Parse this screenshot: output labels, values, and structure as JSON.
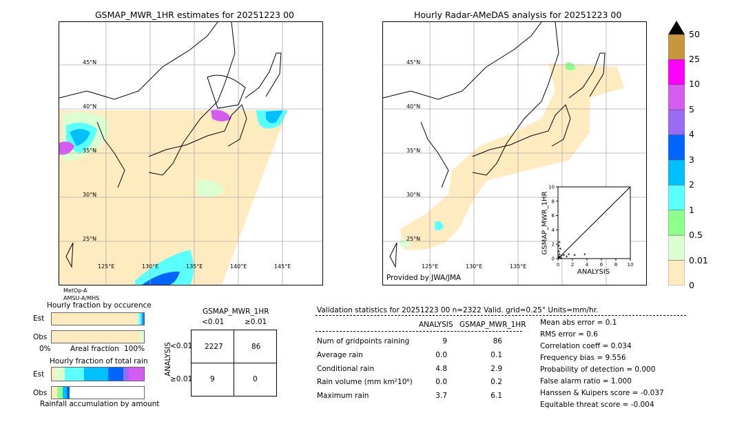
{
  "left_map": {
    "title": "GSMAP_MWR_1HR estimates for 20251223 00",
    "lat_labels": [
      "45°N",
      "40°N",
      "35°N",
      "30°N",
      "25°N"
    ],
    "lon_labels": [
      "125°E",
      "130°E",
      "135°E",
      "140°E",
      "145°E"
    ],
    "satellite_note_1": "MetOp-A",
    "satellite_note_2": "AMSU-A/MHS"
  },
  "right_map": {
    "title": "Hourly Radar-AMeDAS analysis for 20251223 00",
    "lat_labels": [
      "45°N",
      "40°N",
      "35°N",
      "30°N",
      "25°N"
    ],
    "lon_labels": [
      "125°E",
      "130°E",
      "135°E"
    ],
    "provider": "Provided by JWA/JMA"
  },
  "scatter": {
    "xlabel": "ANALYSIS",
    "ylabel": "GSMAP_MWR_1HR",
    "ticks": [
      "0",
      "2",
      "4",
      "6",
      "8",
      "10"
    ]
  },
  "colorbar": {
    "labels": [
      "50",
      "25",
      "10",
      "5",
      "4",
      "3",
      "2",
      "1",
      "0.5",
      "0.01",
      "0"
    ],
    "colors": [
      "#c8963c",
      "#ff00ff",
      "#d45cf0",
      "#9a6af5",
      "#0064ff",
      "#00c0ff",
      "#5affff",
      "#8cff8c",
      "#dcffd2",
      "#ffebc0"
    ]
  },
  "fraction": {
    "title_occurrence": "Hourly fraction by occurence",
    "title_total": "Hourly fraction of total rain",
    "est_label": "Est",
    "obs_label": "Obs",
    "axis_left": "0%",
    "axis_mid": "Areal fraction",
    "axis_right": "100%",
    "footer": "Rainfall accumulation by amount"
  },
  "contingency": {
    "title": "GSMAP_MWR_1HR",
    "col_lt": "<0.01",
    "col_ge": "≥0.01",
    "row_axis": "ANALYSIS",
    "row_lt": "<0.01",
    "row_ge": "≥0.01",
    "cells": [
      "2227",
      "86",
      "9",
      "0"
    ]
  },
  "validation": {
    "header": "Validation statistics for 20251223 00  n=2322 Valid. grid=0.25° Units=mm/hr.",
    "col_analysis": "ANALYSIS",
    "col_gsmap": "GSMAP_MWR_1HR",
    "rows": [
      {
        "label": "Num of gridpoints raining",
        "analysis": "9",
        "gsmap": "86"
      },
      {
        "label": "Average rain",
        "analysis": "0.0",
        "gsmap": "0.1"
      },
      {
        "label": "Conditional rain",
        "analysis": "4.8",
        "gsmap": "2.9"
      },
      {
        "label": "Rain volume (mm km²10⁶)",
        "analysis": "0.0",
        "gsmap": "0.2"
      },
      {
        "label": "Maximum rain",
        "analysis": "3.7",
        "gsmap": "6.1"
      }
    ],
    "scores": [
      "Mean abs error =    0.1",
      "RMS error =    0.6",
      "Correlation coeff =  0.034",
      "Frequency bias =  9.556",
      "Probability of detection =  0.000",
      "False alarm ratio =  1.000",
      "Hanssen & Kuipers score = -0.037",
      "Equitable threat score = -0.004"
    ]
  },
  "chart_data": {
    "type": "scatter",
    "xlabel": "ANALYSIS",
    "ylabel": "GSMAP_MWR_1HR",
    "xlim": [
      0,
      10
    ],
    "ylim": [
      0,
      10
    ],
    "points": [
      {
        "x": 0.1,
        "y": 0.3
      },
      {
        "x": 0.2,
        "y": 0.6
      },
      {
        "x": 0.1,
        "y": 1.0
      },
      {
        "x": 0.3,
        "y": 1.4
      },
      {
        "x": 0.2,
        "y": 0.2
      },
      {
        "x": 0.5,
        "y": 0.4
      },
      {
        "x": 0.8,
        "y": 0.5
      },
      {
        "x": 1.2,
        "y": 0.3
      },
      {
        "x": 1.5,
        "y": 0.6
      },
      {
        "x": 2.3,
        "y": 0.5
      },
      {
        "x": 3.7,
        "y": 0.6
      },
      {
        "x": 0.4,
        "y": 0.1
      },
      {
        "x": 0.1,
        "y": 1.8
      },
      {
        "x": 0.2,
        "y": 2.3
      }
    ]
  }
}
